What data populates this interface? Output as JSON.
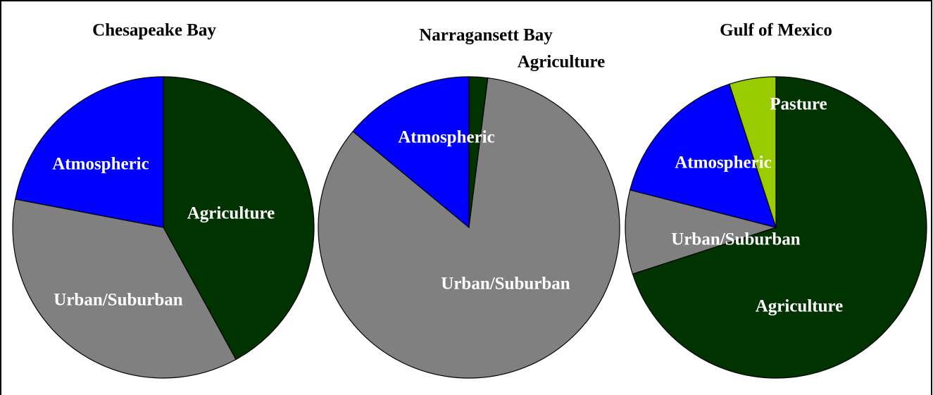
{
  "chart_data": [
    {
      "type": "pie",
      "title": "Chesapeake Bay",
      "categories": [
        "Agriculture",
        "Urban/Suburban",
        "Atmospheric"
      ],
      "values": [
        42,
        36,
        22
      ],
      "colors": [
        "#003300",
        "#808080",
        "#0000ff"
      ]
    },
    {
      "type": "pie",
      "title": "Narragansett Bay",
      "categories": [
        "Agriculture",
        "Urban/Suburban",
        "Atmospheric"
      ],
      "values": [
        2,
        84,
        14
      ],
      "colors": [
        "#003300",
        "#808080",
        "#0000ff"
      ]
    },
    {
      "type": "pie",
      "title": "Gulf of Mexico",
      "categories": [
        "Agriculture",
        "Urban/Suburban",
        "Atmospheric",
        "Pasture"
      ],
      "values": [
        70,
        9,
        16,
        5
      ],
      "colors": [
        "#003300",
        "#808080",
        "#0000ff",
        "#99cc00"
      ]
    }
  ]
}
